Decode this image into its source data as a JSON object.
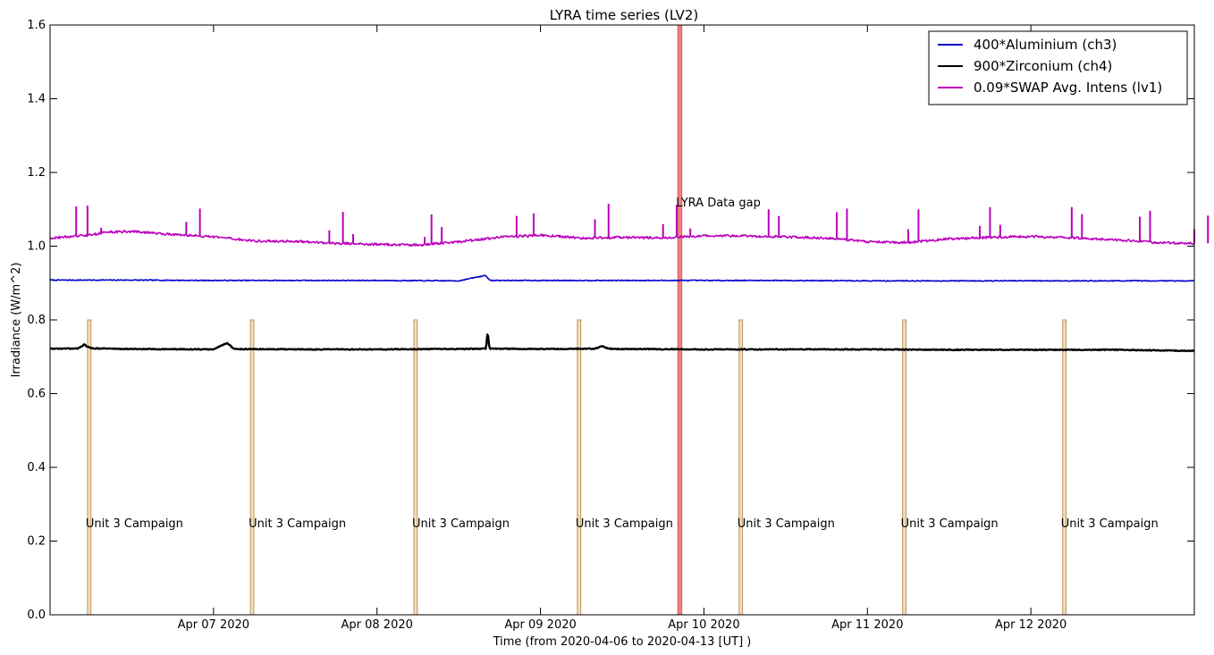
{
  "chart_data": {
    "type": "line",
    "title": "LYRA time series (LV2)",
    "xlabel": "Time (from 2020-04-06 to 2020-04-13 [UT] )",
    "ylabel": "Irradiance (W/m^2)",
    "xlim": [
      "2020-04-06T00:00",
      "2020-04-13T00:00"
    ],
    "ylim": [
      0.0,
      1.6
    ],
    "x_ticks": [
      {
        "t": "2020-04-07T00:00",
        "label": "Apr 07 2020"
      },
      {
        "t": "2020-04-08T00:00",
        "label": "Apr 08 2020"
      },
      {
        "t": "2020-04-09T00:00",
        "label": "Apr 09 2020"
      },
      {
        "t": "2020-04-10T00:00",
        "label": "Apr 10 2020"
      },
      {
        "t": "2020-04-11T00:00",
        "label": "Apr 11 2020"
      },
      {
        "t": "2020-04-12T00:00",
        "label": "Apr 12 2020"
      }
    ],
    "y_ticks": [
      "0.0",
      "0.2",
      "0.4",
      "0.6",
      "0.8",
      "1.0",
      "1.2",
      "1.4",
      "1.6"
    ],
    "grid": false,
    "legend_position": "top-right",
    "series": [
      {
        "name": "400*Aluminium (ch3)",
        "color": "#0000cc",
        "points": [
          [
            "2020-04-06T00:00",
            0.908
          ],
          [
            "2020-04-06T12:00",
            0.908
          ],
          [
            "2020-04-07T00:00",
            0.907
          ],
          [
            "2020-04-07T12:00",
            0.907
          ],
          [
            "2020-04-08T00:00",
            0.907
          ],
          [
            "2020-04-08T12:00",
            0.906
          ],
          [
            "2020-04-08T16:00",
            0.921
          ],
          [
            "2020-04-08T16:30",
            0.907
          ],
          [
            "2020-04-09T00:00",
            0.907
          ],
          [
            "2020-04-09T12:00",
            0.907
          ],
          [
            "2020-04-10T00:00",
            0.907
          ],
          [
            "2020-04-10T12:00",
            0.907
          ],
          [
            "2020-04-11T00:00",
            0.906
          ],
          [
            "2020-04-11T12:00",
            0.906
          ],
          [
            "2020-04-12T00:00",
            0.906
          ],
          [
            "2020-04-12T12:00",
            0.906
          ],
          [
            "2020-04-13T00:00",
            0.906
          ]
        ]
      },
      {
        "name": "900*Zirconium (ch4)",
        "color": "#000000",
        "points": [
          [
            "2020-04-06T00:00",
            0.722
          ],
          [
            "2020-04-06T04:00",
            0.722
          ],
          [
            "2020-04-06T05:00",
            0.733
          ],
          [
            "2020-04-06T06:00",
            0.723
          ],
          [
            "2020-04-06T12:00",
            0.721
          ],
          [
            "2020-04-07T00:00",
            0.72
          ],
          [
            "2020-04-07T02:00",
            0.738
          ],
          [
            "2020-04-07T03:00",
            0.721
          ],
          [
            "2020-04-07T12:00",
            0.72
          ],
          [
            "2020-04-08T00:00",
            0.72
          ],
          [
            "2020-04-08T12:00",
            0.721
          ],
          [
            "2020-04-08T16:00",
            0.722
          ],
          [
            "2020-04-08T16:15",
            0.768
          ],
          [
            "2020-04-08T16:30",
            0.722
          ],
          [
            "2020-04-09T00:00",
            0.721
          ],
          [
            "2020-04-09T08:00",
            0.722
          ],
          [
            "2020-04-09T09:00",
            0.729
          ],
          [
            "2020-04-09T10:00",
            0.722
          ],
          [
            "2020-04-09T12:00",
            0.721
          ],
          [
            "2020-04-10T00:00",
            0.72
          ],
          [
            "2020-04-10T12:00",
            0.72
          ],
          [
            "2020-04-11T00:00",
            0.72
          ],
          [
            "2020-04-11T12:00",
            0.719
          ],
          [
            "2020-04-12T00:00",
            0.719
          ],
          [
            "2020-04-12T12:00",
            0.719
          ],
          [
            "2020-04-13T00:00",
            0.716
          ]
        ]
      },
      {
        "name": "0.09*SWAP Avg. Intens (lv1)",
        "color": "#bb00bb",
        "points": [
          [
            "2020-04-06T00:00",
            1.022
          ],
          [
            "2020-04-06T06:00",
            1.03
          ],
          [
            "2020-04-06T08:00",
            1.038
          ],
          [
            "2020-04-06T12:00",
            1.04
          ],
          [
            "2020-04-06T18:00",
            1.032
          ],
          [
            "2020-04-07T00:00",
            1.025
          ],
          [
            "2020-04-07T06:00",
            1.014
          ],
          [
            "2020-04-07T12:00",
            1.013
          ],
          [
            "2020-04-07T18:00",
            1.008
          ],
          [
            "2020-04-08T00:00",
            1.005
          ],
          [
            "2020-04-08T06:00",
            1.003
          ],
          [
            "2020-04-08T12:00",
            1.012
          ],
          [
            "2020-04-08T18:00",
            1.024
          ],
          [
            "2020-04-09T00:00",
            1.03
          ],
          [
            "2020-04-09T06:00",
            1.022
          ],
          [
            "2020-04-09T12:00",
            1.024
          ],
          [
            "2020-04-09T18:00",
            1.023
          ],
          [
            "2020-04-10T00:00",
            1.028
          ],
          [
            "2020-04-10T06:00",
            1.028
          ],
          [
            "2020-04-10T12:00",
            1.025
          ],
          [
            "2020-04-10T18:00",
            1.022
          ],
          [
            "2020-04-11T00:00",
            1.012
          ],
          [
            "2020-04-11T06:00",
            1.01
          ],
          [
            "2020-04-11T12:00",
            1.02
          ],
          [
            "2020-04-11T18:00",
            1.024
          ],
          [
            "2020-04-12T00:00",
            1.026
          ],
          [
            "2020-04-12T06:00",
            1.023
          ],
          [
            "2020-04-12T12:00",
            1.018
          ],
          [
            "2020-04-12T18:00",
            1.01
          ],
          [
            "2020-04-13T00:00",
            1.008
          ]
        ],
        "spikes": [
          [
            "2020-04-06T03:50",
            1.108
          ],
          [
            "2020-04-06T05:30",
            1.11
          ],
          [
            "2020-04-06T07:30",
            1.05
          ],
          [
            "2020-04-06T20:00",
            1.066
          ],
          [
            "2020-04-06T22:00",
            1.102
          ],
          [
            "2020-04-07T17:00",
            1.043
          ],
          [
            "2020-04-07T19:00",
            1.093
          ],
          [
            "2020-04-07T20:30",
            1.033
          ],
          [
            "2020-04-08T07:00",
            1.025
          ],
          [
            "2020-04-08T08:00",
            1.086
          ],
          [
            "2020-04-08T09:30",
            1.052
          ],
          [
            "2020-04-08T20:30",
            1.082
          ],
          [
            "2020-04-08T23:00",
            1.089
          ],
          [
            "2020-04-09T08:00",
            1.073
          ],
          [
            "2020-04-09T10:00",
            1.115
          ],
          [
            "2020-04-09T18:00",
            1.06
          ],
          [
            "2020-04-09T20:00",
            1.112
          ],
          [
            "2020-04-09T22:00",
            1.048
          ],
          [
            "2020-04-10T09:30",
            1.1
          ],
          [
            "2020-04-10T11:00",
            1.082
          ],
          [
            "2020-04-10T19:30",
            1.092
          ],
          [
            "2020-04-10T21:00",
            1.102
          ],
          [
            "2020-04-11T06:00",
            1.046
          ],
          [
            "2020-04-11T07:30",
            1.1
          ],
          [
            "2020-04-11T16:30",
            1.055
          ],
          [
            "2020-04-11T18:00",
            1.106
          ],
          [
            "2020-04-11T19:30",
            1.058
          ],
          [
            "2020-04-12T06:00",
            1.106
          ],
          [
            "2020-04-12T07:30",
            1.087
          ],
          [
            "2020-04-12T16:00",
            1.08
          ],
          [
            "2020-04-12T17:30",
            1.096
          ],
          [
            "2020-04-13T00:00",
            1.046
          ],
          [
            "2020-04-13T02:00",
            1.083
          ]
        ]
      }
    ],
    "spans": [
      {
        "kind": "data-gap",
        "start": "2020-04-09T20:10",
        "end": "2020-04-09T20:45",
        "ymax": 1.6,
        "color": "#f08080",
        "label": "LYRA Data gap",
        "label_y": 1.12
      },
      {
        "kind": "campaign",
        "start": "2020-04-06T05:30",
        "end": "2020-04-06T06:00",
        "ymax": 0.8,
        "color": "#f5deb3",
        "label": "Unit 3 Campaign",
        "label_y": 0.25
      },
      {
        "kind": "campaign",
        "start": "2020-04-07T05:25",
        "end": "2020-04-07T05:55",
        "ymax": 0.8,
        "color": "#f5deb3",
        "label": "Unit 3 Campaign",
        "label_y": 0.25
      },
      {
        "kind": "campaign",
        "start": "2020-04-08T05:25",
        "end": "2020-04-08T05:55",
        "ymax": 0.8,
        "color": "#f5deb3",
        "label": "Unit 3 Campaign",
        "label_y": 0.25
      },
      {
        "kind": "campaign",
        "start": "2020-04-09T05:25",
        "end": "2020-04-09T05:55",
        "ymax": 0.8,
        "color": "#f5deb3",
        "label": "Unit 3 Campaign",
        "label_y": 0.25
      },
      {
        "kind": "campaign",
        "start": "2020-04-10T05:10",
        "end": "2020-04-10T05:40",
        "ymax": 0.8,
        "color": "#f5deb3",
        "label": "Unit 3 Campaign",
        "label_y": 0.25
      },
      {
        "kind": "campaign",
        "start": "2020-04-11T05:10",
        "end": "2020-04-11T05:40",
        "ymax": 0.8,
        "color": "#f5deb3",
        "label": "Unit 3 Campaign",
        "label_y": 0.25
      },
      {
        "kind": "campaign",
        "start": "2020-04-12T04:40",
        "end": "2020-04-12T05:10",
        "ymax": 0.8,
        "color": "#f5deb3",
        "label": "Unit 3 Campaign",
        "label_y": 0.25
      }
    ]
  }
}
